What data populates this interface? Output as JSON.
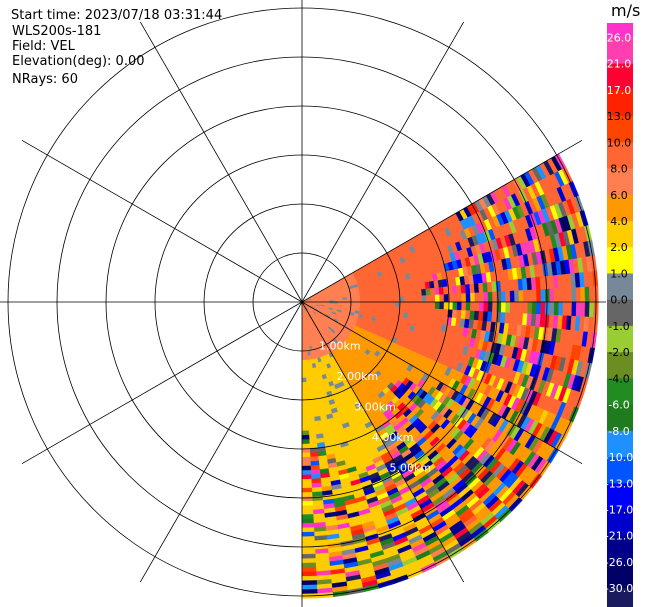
{
  "info": {
    "start_time": "Start time: 2023/07/18 03:31:44",
    "site": "WLS200s-181",
    "field": "Field: VEL",
    "elevation": "Elevation(deg): 0.00",
    "nrays": "NRays: 60"
  },
  "chart_data": {
    "type": "ppi-radar",
    "field": "VEL",
    "units": "m/s",
    "range_rings_km": [
      1,
      2,
      3,
      4,
      5,
      6
    ],
    "range_labels": [
      "1.00km",
      "2.00km",
      "3.00km",
      "4.00km",
      "5.00km"
    ],
    "azimuth_spokes_deg": [
      0,
      30,
      60,
      90,
      120,
      150,
      180,
      210,
      240,
      270,
      300,
      330
    ],
    "sector_deg": [
      60,
      180
    ],
    "max_range_km": 6,
    "data_regions": [
      {
        "desc": "near range approaching",
        "az": [
          60,
          180
        ],
        "range_km": [
          0,
          1.1
        ],
        "value": 6.0
      },
      {
        "desc": "northeast receding",
        "az": [
          62,
          112
        ],
        "range_km": [
          0,
          3.5
        ],
        "value": 8.0
      },
      {
        "desc": "southeast",
        "az": [
          112,
          150
        ],
        "range_km": [
          0,
          3.0
        ],
        "value": 4.0
      },
      {
        "desc": "south",
        "az": [
          150,
          180
        ],
        "range_km": [
          0,
          3.0
        ],
        "value": 2.0
      },
      {
        "desc": "outer band",
        "az": [
          60,
          180
        ],
        "range_km": [
          3.0,
          6.0
        ],
        "value": "noise"
      }
    ],
    "colorbar": {
      "title": "m/s",
      "labels": [
        "26.0",
        "21.0",
        "17.0",
        "13.0",
        "10.0",
        "8.0",
        "6.0",
        "4.0",
        "2.0",
        "1.0",
        "0.0",
        "-1.0",
        "-2.0",
        "-4.0",
        "-6.0",
        "-8.0",
        "-10.0",
        "-13.0",
        "-17.0",
        "-21.0",
        "-26.0",
        "-30.0"
      ],
      "colors": [
        "#ff3fb0",
        "#ff0033",
        "#ff2200",
        "#ff4400",
        "#ff6633",
        "#ff7f50",
        "#ff9900",
        "#ffcc00",
        "#ffff00",
        "#778899",
        "#666666",
        "#9acd32",
        "#6b8e23",
        "#228b22",
        "#1e7b1e",
        "#1e90ff",
        "#0055ff",
        "#0000ff",
        "#0000cc",
        "#00008b",
        "#000066",
        "#1a1a5e"
      ],
      "top_color": "#ff33cc"
    }
  }
}
